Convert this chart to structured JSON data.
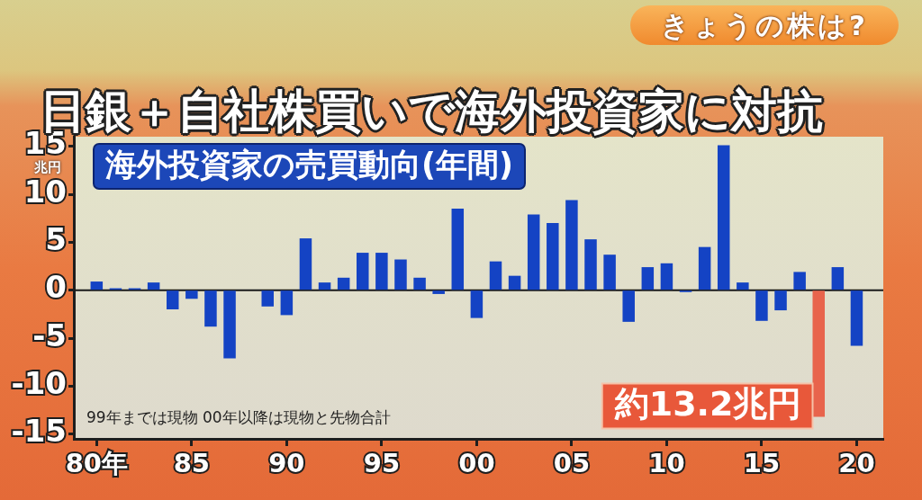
{
  "chart_data": {
    "type": "bar",
    "title": "日銀＋自社株買いで海外投資家に対抗",
    "subtitle": "海外投資家の売買動向(年間)",
    "ylabel": "兆円",
    "annotations": [
      "99年までは現物 00年以降は現物と先物合計",
      "きょうの株は?",
      "約13.2兆円"
    ],
    "categories": [
      "80年",
      null,
      null,
      null,
      null,
      "85",
      null,
      null,
      null,
      null,
      "90",
      null,
      null,
      null,
      null,
      "95",
      null,
      null,
      null,
      null,
      "00",
      null,
      null,
      null,
      null,
      "05",
      null,
      null,
      null,
      null,
      "10",
      null,
      null,
      null,
      null,
      "15",
      null,
      null,
      null,
      null,
      "20"
    ],
    "values": [
      0.9,
      0.2,
      0.2,
      0.8,
      -2.0,
      -0.9,
      -3.8,
      -7.1,
      0,
      -1.7,
      -2.6,
      5.4,
      0.8,
      1.3,
      3.9,
      3.9,
      3.2,
      1.3,
      -0.4,
      8.5,
      -2.9,
      3.0,
      1.5,
      7.9,
      7.0,
      9.4,
      5.3,
      3.7,
      -3.3,
      2.4,
      2.8,
      -0.2,
      4.5,
      15.1,
      0.8,
      -3.2,
      -2.1,
      1.9,
      -13.2,
      2.4,
      -5.8
    ],
    "colors": [
      "#1443c4",
      "#1443c4",
      "#1443c4",
      "#1443c4",
      "#1443c4",
      "#1443c4",
      "#1443c4",
      "#1443c4",
      "#1443c4",
      "#1443c4",
      "#1443c4",
      "#1443c4",
      "#1443c4",
      "#1443c4",
      "#1443c4",
      "#1443c4",
      "#1443c4",
      "#1443c4",
      "#1443c4",
      "#1443c4",
      "#1443c4",
      "#1443c4",
      "#1443c4",
      "#1443c4",
      "#1443c4",
      "#1443c4",
      "#1443c4",
      "#1443c4",
      "#1443c4",
      "#1443c4",
      "#1443c4",
      "#1443c4",
      "#1443c4",
      "#1443c4",
      "#1443c4",
      "#1443c4",
      "#1443c4",
      "#1443c4",
      "#e8644c",
      "#1443c4",
      "#1443c4"
    ],
    "ylim": [
      -15.5,
      16
    ],
    "yticks": [
      -15,
      -10,
      -5,
      0,
      5,
      10,
      15
    ],
    "grid": false,
    "ref_lines": [
      {
        "axis": "y",
        "value": 0,
        "color": "#1a1a1a"
      }
    ]
  }
}
